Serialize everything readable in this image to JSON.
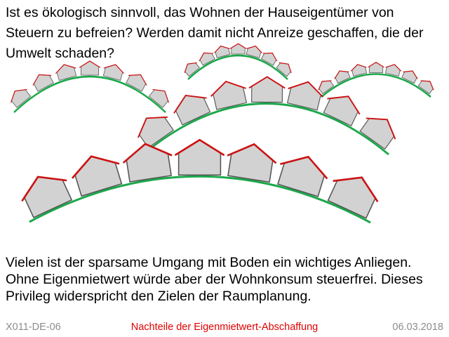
{
  "slide": {
    "title": "Ist es ökologisch sinnvoll, das Wohnen der Hauseigentümer von Steuern zu befreien? Werden damit nicht Anreize geschaffen, die der Umwelt schaden?",
    "body": "Vielen ist der sparsame Umgang mit Boden ein wichtiges Anliegen. Ohne Eigenmietwert würde aber der Wohnkonsum steuerfrei. Dieses Privileg widerspricht den Zielen der Raumplanung.",
    "footer": {
      "code": "X011-DE-06",
      "topic": "Nachteile der Eigenmietwert-Abschaffung",
      "date": "06.03.2018"
    }
  },
  "colors": {
    "hill": "#1aa84a",
    "roof": "#cc1111",
    "house_fill": "#d2d2d2",
    "house_outline": "#555555",
    "footer_topic": "#e00000",
    "footer_meta": "#8c8c8c"
  },
  "illustration": {
    "description_icon": "hill-houses-illustration"
  }
}
